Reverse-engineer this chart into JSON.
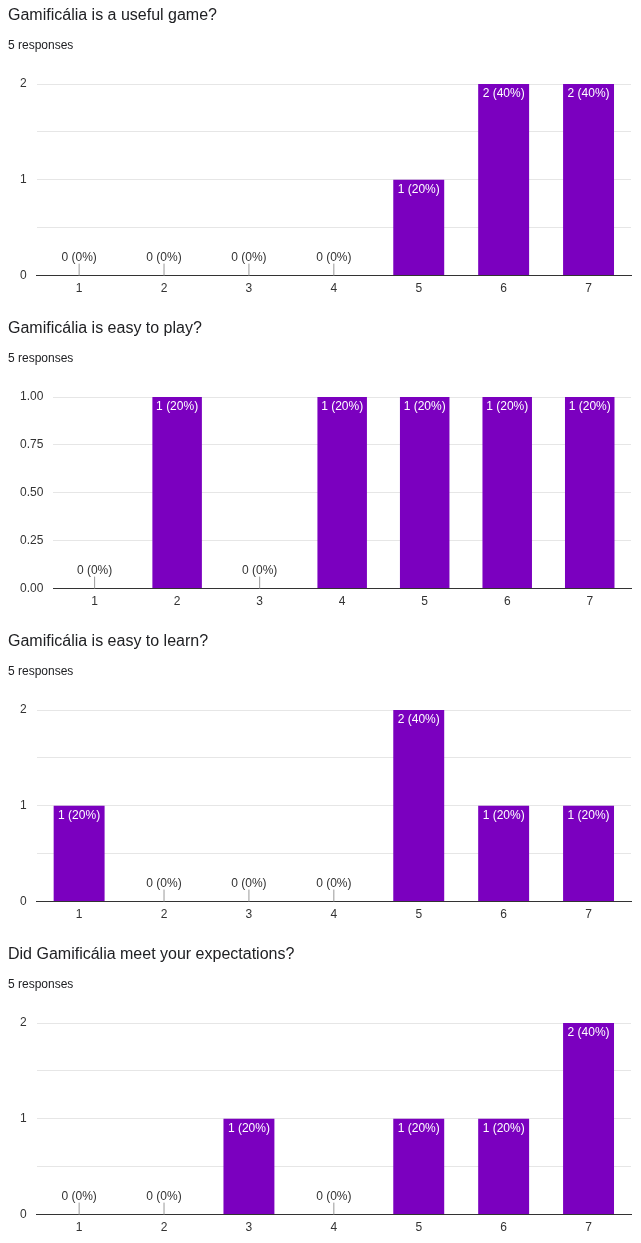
{
  "chart_data": [
    {
      "type": "bar",
      "title": "Gamificália is a useful game?",
      "subtitle": "5 responses",
      "categories": [
        "1",
        "2",
        "3",
        "4",
        "5",
        "6",
        "7"
      ],
      "values": [
        0,
        0,
        0,
        0,
        1,
        2,
        2
      ],
      "color": "#7b00bf",
      "ylim": [
        0,
        2
      ],
      "yticks": [
        0,
        {
          "value": 0.5,
          "label": null
        },
        1,
        {
          "value": 1.5,
          "label": null
        },
        2
      ],
      "grid": "y",
      "value_labels": [
        "0 (0%)",
        "0 (0%)",
        "0 (0%)",
        "0 (0%)",
        "1 (20%)",
        "2 (40%)",
        "2 (40%)"
      ]
    },
    {
      "type": "bar",
      "title": "Gamificália is easy to play?",
      "subtitle": "5 responses",
      "categories": [
        "1",
        "2",
        "3",
        "4",
        "5",
        "6",
        "7"
      ],
      "values": [
        0,
        1,
        0,
        1,
        1,
        1,
        1
      ],
      "color": "#7b00bf",
      "ylim": [
        0,
        1
      ],
      "yticks": [
        {
          "value": 0,
          "label": "0.00"
        },
        {
          "value": 0.25,
          "label": "0.25"
        },
        {
          "value": 0.5,
          "label": "0.50"
        },
        {
          "value": 0.75,
          "label": "0.75"
        },
        {
          "value": 1,
          "label": "1.00"
        }
      ],
      "grid": "y",
      "value_labels": [
        "0 (0%)",
        "1 (20%)",
        "0 (0%)",
        "1 (20%)",
        "1 (20%)",
        "1 (20%)",
        "1 (20%)"
      ]
    },
    {
      "type": "bar",
      "title": "Gamificália is easy to learn?",
      "subtitle": "5 responses",
      "categories": [
        "1",
        "2",
        "3",
        "4",
        "5",
        "6",
        "7"
      ],
      "values": [
        1,
        0,
        0,
        0,
        2,
        1,
        1
      ],
      "color": "#7b00bf",
      "ylim": [
        0,
        2
      ],
      "yticks": [
        0,
        {
          "value": 0.5,
          "label": null
        },
        1,
        {
          "value": 1.5,
          "label": null
        },
        2
      ],
      "grid": "y",
      "value_labels": [
        "1 (20%)",
        "0 (0%)",
        "0 (0%)",
        "0 (0%)",
        "2 (40%)",
        "1 (20%)",
        "1 (20%)"
      ]
    },
    {
      "type": "bar",
      "title": "Did Gamificália meet your expectations?",
      "subtitle": "5 responses",
      "categories": [
        "1",
        "2",
        "3",
        "4",
        "5",
        "6",
        "7"
      ],
      "values": [
        0,
        0,
        1,
        0,
        1,
        1,
        2
      ],
      "color": "#7b00bf",
      "ylim": [
        0,
        2
      ],
      "yticks": [
        0,
        {
          "value": 0.5,
          "label": null
        },
        1,
        {
          "value": 1.5,
          "label": null
        },
        2
      ],
      "grid": "y",
      "value_labels": [
        "0 (0%)",
        "0 (0%)",
        "1 (20%)",
        "0 (0%)",
        "1 (20%)",
        "1 (20%)",
        "2 (40%)"
      ]
    }
  ]
}
